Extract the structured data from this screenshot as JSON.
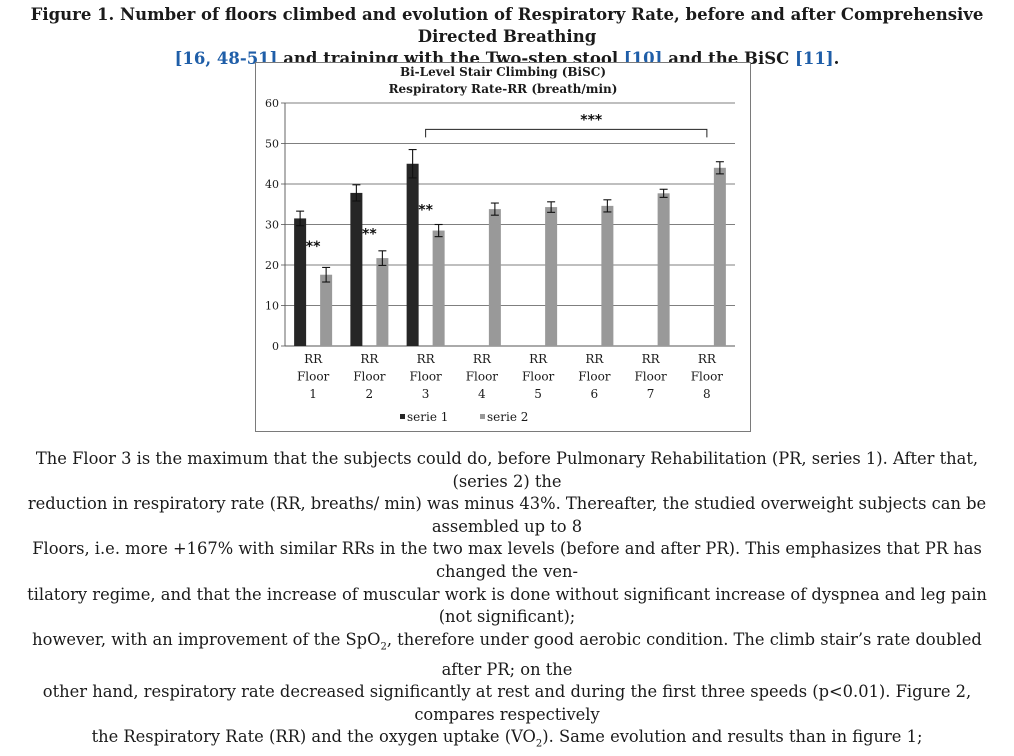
{
  "caption": {
    "line1_prefix": "Figure 1.",
    "line1": "Number of floors climbed and evolution of Respiratory Rate, before and after Comprehensive Directed Breathing",
    "ref1": "[16, 48-51]",
    "line2_mid": "and training with the Two-step stool",
    "ref2": "[10]",
    "line2_and": "and the BiSC",
    "ref3": "[11]",
    "line2_end": "."
  },
  "chart_data": {
    "type": "bar",
    "title": "Bi-Level Stair Climbing (BiSC)",
    "subtitle": "Respiratory Rate-RR (breath/min)",
    "categories": [
      [
        "RR",
        "Floor",
        "1"
      ],
      [
        "RR",
        "Floor",
        "2"
      ],
      [
        "RR",
        "Floor",
        "3"
      ],
      [
        "RR",
        "Floor",
        "4"
      ],
      [
        "RR",
        "Floor",
        "5"
      ],
      [
        "RR",
        "Floor",
        "6"
      ],
      [
        "RR",
        "Floor",
        "7"
      ],
      [
        "RR",
        "Floor",
        "8"
      ]
    ],
    "series": [
      {
        "name": "serie 1",
        "color": "#262626",
        "values": [
          31.5,
          37.8,
          45.0,
          null,
          null,
          null,
          null,
          null
        ],
        "errors": [
          1.8,
          2.0,
          3.5,
          null,
          null,
          null,
          null,
          null
        ]
      },
      {
        "name": "serie 2",
        "color": "#999999",
        "values": [
          17.6,
          21.7,
          28.5,
          33.8,
          34.3,
          34.6,
          37.7,
          44.0
        ],
        "errors": [
          1.8,
          1.8,
          1.5,
          1.5,
          1.3,
          1.5,
          1.0,
          1.5
        ]
      }
    ],
    "yticks": [
      0,
      10,
      20,
      30,
      40,
      50,
      60
    ],
    "ylim": [
      0,
      60
    ],
    "grid": true,
    "legend": "bottom",
    "annotations": [
      {
        "text": "**",
        "category_index": 0,
        "value": 23.5
      },
      {
        "text": "**",
        "category_index": 1,
        "value": 26.5
      },
      {
        "text": "**",
        "category_index": 2,
        "value": 32.5
      },
      {
        "text": "***",
        "from_index": 2,
        "to_index": 7,
        "value": 53.5
      }
    ]
  },
  "body": {
    "l1": "The Floor 3 is the maximum that the subjects could do, before Pulmonary Rehabilitation (PR, series 1). After that, (series 2) the",
    "l2": "reduction in respiratory rate (RR, breaths/ min) was minus 43%. Thereafter, the studied overweight subjects can be assembled up to 8",
    "l3": "Floors, i.e. more +167% with similar RRs in the two max levels (before and after PR). This emphasizes that PR has changed the ven-",
    "l4": "tilatory regime, and that the increase of muscular work is done without significant increase of dyspnea and leg pain (not significant);",
    "l5a": "however, with an improvement of the SpO",
    "l5sub": "2",
    "l5b": ", therefore under good aerobic condition. The climb stair’s rate doubled after PR; on the",
    "l6": "other hand, respiratory rate decreased significantly at rest and during the first three speeds (p<0.01). Figure 2, compares respectively",
    "l7a": "the Respiratory Rate (RR) and the oxygen uptake (VO",
    "l7sub": "2",
    "l7b": "). Same evolution and results than in figure 1;"
  }
}
